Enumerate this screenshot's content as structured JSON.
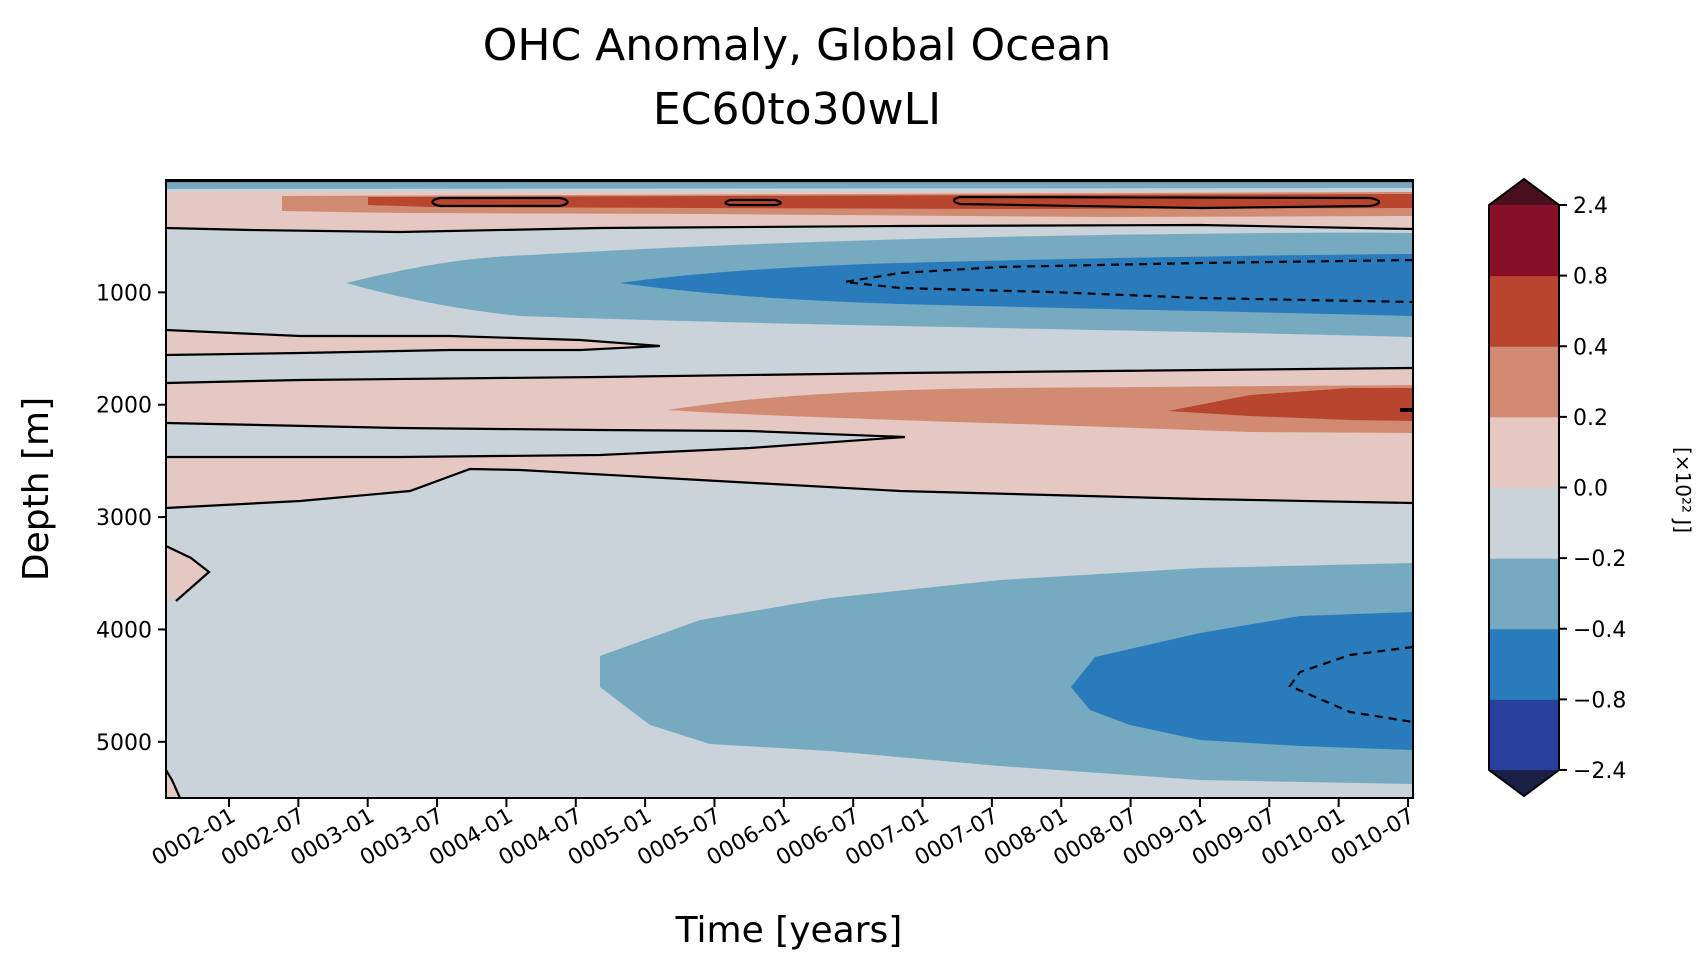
{
  "chart_data": {
    "type": "heatmap",
    "title": "OHC Anomaly, Global Ocean",
    "subtitle": "EC60to30wLI",
    "xlabel": "Time [years]",
    "ylabel": "Depth [m]",
    "x_ticks": [
      "0002-01",
      "0002-07",
      "0003-01",
      "0003-07",
      "0004-01",
      "0004-07",
      "0005-01",
      "0005-07",
      "0006-01",
      "0006-07",
      "0007-01",
      "0007-07",
      "0008-01",
      "0008-07",
      "0009-01",
      "0009-07",
      "0010-01",
      "0010-07"
    ],
    "x_range": [
      "0001-07",
      "0010-07"
    ],
    "y_ticks": [
      "1000",
      "2000",
      "3000",
      "4000",
      "5000"
    ],
    "y_range": [
      0,
      5500
    ],
    "y_inverted": true,
    "colorbar": {
      "label": "[×10²² J]",
      "ticks": [
        "2.4",
        "0.8",
        "0.4",
        "0.2",
        "0.0",
        "−0.2",
        "−0.4",
        "−0.8",
        "−2.4"
      ],
      "levels": [
        -2.4,
        -0.8,
        -0.4,
        -0.2,
        0.0,
        0.2,
        0.4,
        0.8,
        2.4
      ],
      "colors": [
        "#293f9e",
        "#2a7bbc",
        "#76aac0",
        "#cbd3da",
        "#e5c8c1",
        "#d08b72",
        "#b8452e",
        "#870f27"
      ],
      "extend_low_color": "#1a1f46",
      "extend_high_color": "#4a0f1c"
    },
    "features": [
      {
        "name": "upper-ocean warm band",
        "depth_m": [
          100,
          350
        ],
        "value": "0.2 to 0.8"
      },
      {
        "name": "intermediate cool core",
        "depth_m": [
          500,
          1300
        ],
        "value": "-0.8 to -0.2",
        "from": "0003-01"
      },
      {
        "name": "mid-depth warm tongue",
        "depth_m": [
          1800,
          2300
        ],
        "value": "0.2 to 0.8",
        "from": "0005-01"
      },
      {
        "name": "abyssal cool core",
        "depth_m": [
          3500,
          5300
        ],
        "value": "-0.8 to -0.2",
        "from": "0004-07"
      }
    ]
  }
}
